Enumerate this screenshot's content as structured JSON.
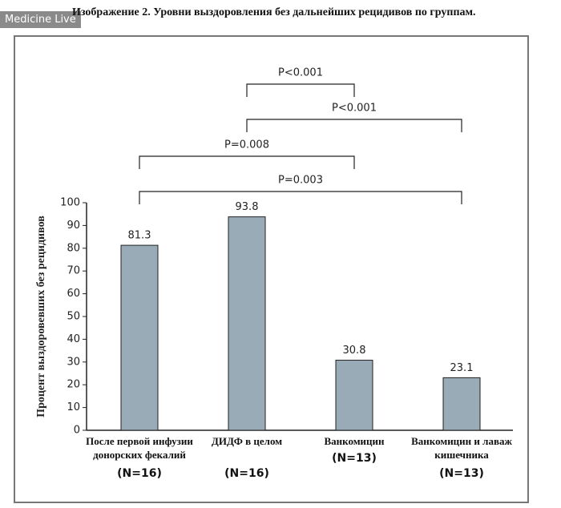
{
  "watermark": "Medicine Live",
  "chart_data": {
    "type": "bar",
    "title": "Изображение 2. Уровни выздоровления без дальнейших рецидивов по группам.",
    "ylabel": "Процент выздоровевших без рецидивов",
    "categories": [
      "После первой инфузии донорских фекалий",
      "ДИДФ в целом",
      "Ванкомицин",
      "Ванкомицин и лаваж кишечника"
    ],
    "n_labels": [
      "(N=16)",
      "(N=16)",
      "(N=13)",
      "(N=13)"
    ],
    "values": [
      81.3,
      93.8,
      30.8,
      23.1
    ],
    "color": "#9aabb8",
    "ylim": [
      0,
      100
    ],
    "yticks": [
      0,
      10,
      20,
      30,
      40,
      50,
      60,
      70,
      80,
      90,
      100
    ],
    "comparisons": [
      {
        "label": "P<0.001",
        "groups": [
          1,
          2
        ]
      },
      {
        "label": "P<0.001",
        "groups": [
          1,
          3
        ]
      },
      {
        "label": "P=0.008",
        "groups": [
          0,
          2
        ]
      },
      {
        "label": "P=0.003",
        "groups": [
          0,
          3
        ]
      }
    ]
  }
}
